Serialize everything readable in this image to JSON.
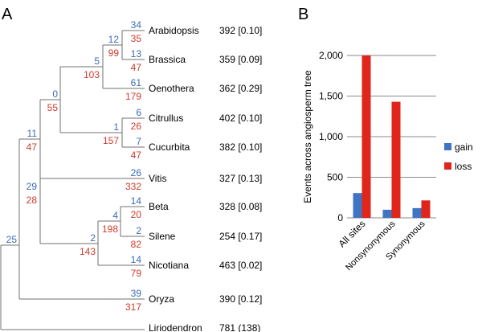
{
  "panel_a": {
    "label": "A",
    "taxa": [
      {
        "name": "Arabidopsis",
        "stat": "392 [0.10]",
        "gain": "34",
        "loss": "35"
      },
      {
        "name": "Brassica",
        "stat": "359 [0.09]",
        "gain": "13",
        "loss": "47"
      },
      {
        "name": "Oenothera",
        "stat": "362 [0.29]",
        "gain": "61",
        "loss": "179"
      },
      {
        "name": "Citrullus",
        "stat": "402 [0.10]",
        "gain": "6",
        "loss": "26"
      },
      {
        "name": "Cucurbita",
        "stat": "382 [0.10]",
        "gain": "7",
        "loss": "47"
      },
      {
        "name": "Vitis",
        "stat": "327 [0.13]",
        "gain": "26",
        "loss": "332"
      },
      {
        "name": "Beta",
        "stat": "328 [0.08]",
        "gain": "14",
        "loss": "20"
      },
      {
        "name": "Silene",
        "stat": "254 [0.17]",
        "gain": "2",
        "loss": "82"
      },
      {
        "name": "Nicotiana",
        "stat": "463 [0.02]",
        "gain": "14",
        "loss": "79"
      },
      {
        "name": "Oryza",
        "stat": "390 [0.12]",
        "gain": "39",
        "loss": "317"
      },
      {
        "name": "Liriodendron",
        "stat": "781 (138)"
      }
    ],
    "internal": [
      {
        "gain": "12",
        "loss": "99"
      },
      {
        "gain": "5",
        "loss": "103"
      },
      {
        "gain": "1",
        "loss": "157"
      },
      {
        "gain": "0",
        "loss": "55"
      },
      {
        "gain": "11",
        "loss": "47"
      },
      {
        "gain": "4",
        "loss": "198"
      },
      {
        "gain": "2",
        "loss": "143"
      },
      {
        "gain": "29",
        "loss": "28"
      },
      {
        "gain": "25"
      }
    ]
  },
  "panel_b": {
    "label": "B"
  },
  "chart_data": {
    "type": "bar",
    "title": "",
    "xlabel": "",
    "ylabel": "Events across angiosperm tree",
    "categories": [
      "All sites",
      "Nonsynonymous",
      "Synonymous"
    ],
    "series": [
      {
        "name": "gain",
        "color": "#3f74c2",
        "values": [
          305,
          100,
          120
        ]
      },
      {
        "name": "loss",
        "color": "#e0261b",
        "values": [
          2000,
          1430,
          215
        ]
      }
    ],
    "ylim": [
      0,
      2000
    ],
    "yticks": [
      0,
      500,
      1000,
      1500,
      2000
    ],
    "ytick_labels": [
      "0",
      "500",
      "1,000",
      "1,500",
      "2,000"
    ],
    "grid": true,
    "legend": "right"
  }
}
